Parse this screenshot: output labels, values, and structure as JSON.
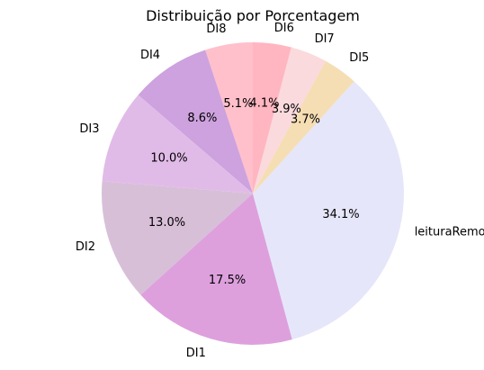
{
  "chart_data": {
    "type": "pie",
    "title": "Distribuição por Porcentagem",
    "start_angle_deg": 90,
    "direction": "counterclockwise",
    "slices": [
      {
        "label": "DI8",
        "percent": 5.1,
        "color": "#FFC0CB"
      },
      {
        "label": "DI4",
        "percent": 8.6,
        "color": "#CDA2DE"
      },
      {
        "label": "DI3",
        "percent": 10.0,
        "color": "#E1BBE8"
      },
      {
        "label": "DI2",
        "percent": 13.0,
        "color": "#D8BFD8"
      },
      {
        "label": "DI1",
        "percent": 17.5,
        "color": "#DDA0DD"
      },
      {
        "label": "leituraRemota",
        "percent": 34.1,
        "color": "#E6E6FA"
      },
      {
        "label": "DI5",
        "percent": 3.7,
        "color": "#F5DEB3"
      },
      {
        "label": "DI7",
        "percent": 3.9,
        "color": "#FADADD"
      },
      {
        "label": "DI6",
        "percent": 4.1,
        "color": "#FFB6C1"
      }
    ]
  }
}
